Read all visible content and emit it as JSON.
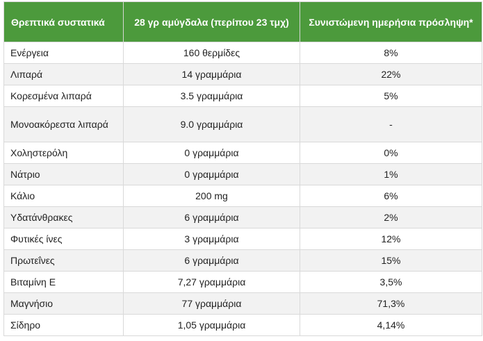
{
  "table": {
    "headers": [
      "Θρεπτικά συστατικά",
      "28 γρ αμύγδαλα (περίπου 23 τμχ)",
      "Συνιστώμενη ημερήσια πρόσληψη*"
    ],
    "rows": [
      [
        "Ενέργεια",
        "160 θερμίδες",
        "8%"
      ],
      [
        "Λιπαρά",
        "14 γραμμάρια",
        "22%"
      ],
      [
        "Κορεσμένα λιπαρά",
        "3.5 γραμμάρια",
        "5%"
      ],
      [
        "Μονοακόρεστα λιπαρά",
        "9.0 γραμμάρια",
        "-"
      ],
      [
        "Χοληστερόλη",
        "0 γραμμάρια",
        "0%"
      ],
      [
        "Νάτριο",
        "0 γραμμάρια",
        "1%"
      ],
      [
        "Κάλιο",
        "200 mg",
        "6%"
      ],
      [
        "Υδατάνθρακες",
        "6 γραμμάρια",
        "2%"
      ],
      [
        "Φυτικές ίνες",
        "3 γραμμάρια",
        "12%"
      ],
      [
        "Πρωτεΐνες",
        "6 γραμμάρια",
        "15%"
      ],
      [
        "Βιταμίνη Ε",
        "7,27 γραμμάρια",
        "3,5%"
      ],
      [
        "Μαγνήσιο",
        "77 γραμμάρια",
        "71,3%"
      ],
      [
        "Σίδηρο",
        "1,05 γραμμάρια",
        "4,14%"
      ]
    ]
  },
  "colors": {
    "header_bg": "#4c9a3c",
    "header_text": "#ffffff",
    "stripe_bg": "#f2f2f2",
    "border": "#d9d9d9"
  }
}
